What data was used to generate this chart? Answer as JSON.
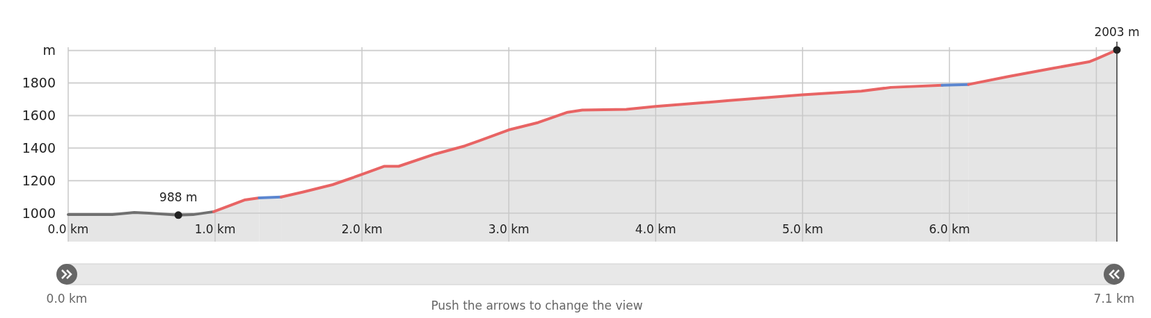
{
  "chart_data": {
    "type": "area",
    "xlim": [
      0,
      7.14
    ],
    "ylim": [
      825,
      2020
    ],
    "xticks": [
      {
        "value": 0,
        "label": "0.0 km"
      },
      {
        "value": 1,
        "label": "1.0 km"
      },
      {
        "value": 2,
        "label": "2.0 km"
      },
      {
        "value": 3,
        "label": "3.0 km"
      },
      {
        "value": 4,
        "label": "4.0 km"
      },
      {
        "value": 5,
        "label": "5.0 km"
      },
      {
        "value": 6,
        "label": "6.0 km"
      },
      {
        "value": 7,
        "label": null
      }
    ],
    "yticks": [
      1000,
      1200,
      1400,
      1600,
      1800,
      {
        "value": 2000,
        "label": "m"
      }
    ],
    "grid": true,
    "series": [
      {
        "color": "#707070",
        "x": [
          0,
          0.3,
          0.45,
          0.55,
          0.75,
          0.85,
          0.99
        ],
        "values": [
          991,
          991,
          1004,
          1000,
          988,
          991,
          1009
        ]
      },
      {
        "color": "#e86464",
        "x": [
          0.99,
          1.2,
          1.3
        ],
        "values": [
          1009,
          1081,
          1094
        ]
      },
      {
        "color": "#5b86d0",
        "x": [
          1.3,
          1.45
        ],
        "values": [
          1094,
          1099
        ]
      },
      {
        "color": "#e86464",
        "x": [
          1.45,
          1.6,
          1.8,
          2.0,
          2.15,
          2.25,
          2.5,
          2.7,
          2.8,
          3.0,
          3.2,
          3.4,
          3.5,
          3.8,
          4.0,
          4.5,
          5.0,
          5.4,
          5.6,
          5.95
        ],
        "values": [
          1099,
          1130,
          1175,
          1238,
          1288,
          1288,
          1364,
          1413,
          1445,
          1512,
          1557,
          1620,
          1634,
          1638,
          1656,
          1692,
          1728,
          1750,
          1773,
          1786
        ]
      },
      {
        "color": "#5b86d0",
        "x": [
          5.95,
          6.13
        ],
        "values": [
          1786,
          1791
        ]
      },
      {
        "color": "#e86464",
        "x": [
          6.13,
          6.4,
          6.7,
          6.95,
          7.0,
          7.14
        ],
        "values": [
          1791,
          1840,
          1890,
          1930,
          1948,
          2003
        ]
      }
    ],
    "annotations": [
      {
        "text": "988 m",
        "x": 0.75,
        "y": 988
      },
      {
        "text": "2003 m",
        "x": 7.14,
        "y": 2003
      },
      "0.0 km",
      "7.1 km",
      "Push the arrows to change the view"
    ]
  }
}
